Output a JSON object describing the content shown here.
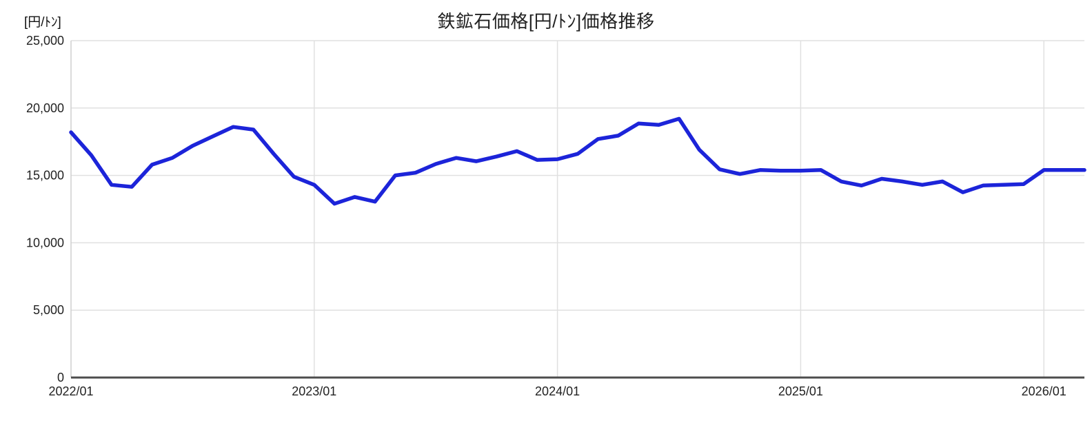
{
  "chart_data": {
    "type": "line",
    "title": "鉄鉱石価格[円/ﾄﾝ]価格推移",
    "ylabel": "[円/ﾄﾝ]",
    "xlabel": "",
    "ylim": [
      0,
      25000
    ],
    "y_ticks": [
      0,
      5000,
      10000,
      15000,
      20000,
      25000
    ],
    "y_tick_labels": [
      "0",
      "5,000",
      "10,000",
      "15,000",
      "20,000",
      "25,000"
    ],
    "x_tick_indices": [
      0,
      12,
      24,
      36,
      48
    ],
    "x_tick_labels": [
      "2022/01",
      "2023/01",
      "2024/01",
      "2025/01",
      "2026/01"
    ],
    "x": [
      "2022/01",
      "2022/02",
      "2022/03",
      "2022/04",
      "2022/05",
      "2022/06",
      "2022/07",
      "2022/08",
      "2022/09",
      "2022/10",
      "2022/11",
      "2022/12",
      "2023/01",
      "2023/02",
      "2023/03",
      "2023/04",
      "2023/05",
      "2023/06",
      "2023/07",
      "2023/08",
      "2023/09",
      "2023/10",
      "2023/11",
      "2023/12",
      "2024/01",
      "2024/02",
      "2024/03",
      "2024/04",
      "2024/05",
      "2024/06",
      "2024/07",
      "2024/08",
      "2024/09",
      "2024/10",
      "2024/11",
      "2024/12",
      "2025/01",
      "2025/02",
      "2025/03",
      "2025/04",
      "2025/05",
      "2025/06",
      "2025/07",
      "2025/08",
      "2025/09",
      "2025/10",
      "2025/11",
      "2025/12",
      "2026/01",
      "2026/02",
      "2026/03"
    ],
    "values": [
      18200,
      16500,
      14300,
      14150,
      15800,
      16300,
      17200,
      17900,
      18600,
      18400,
      16600,
      14900,
      14300,
      12900,
      13400,
      13050,
      15000,
      15200,
      15850,
      16300,
      16050,
      16400,
      16800,
      16150,
      16200,
      16600,
      17700,
      17950,
      18850,
      18750,
      19200,
      16900,
      15450,
      15100,
      15400,
      15350,
      15350,
      15400,
      14550,
      14250,
      14750,
      14550,
      14300,
      14550,
      13750,
      14250,
      14300,
      14350,
      15400,
      15400,
      15400
    ],
    "grid": true,
    "legend_position": "none",
    "line_color": "#1c24d9",
    "grid_color": "#e0e0e0",
    "plot_border_color": "#cfcfcf",
    "axis_color": "#4d4d4d",
    "text_color": "#222222",
    "background": "#ffffff"
  }
}
